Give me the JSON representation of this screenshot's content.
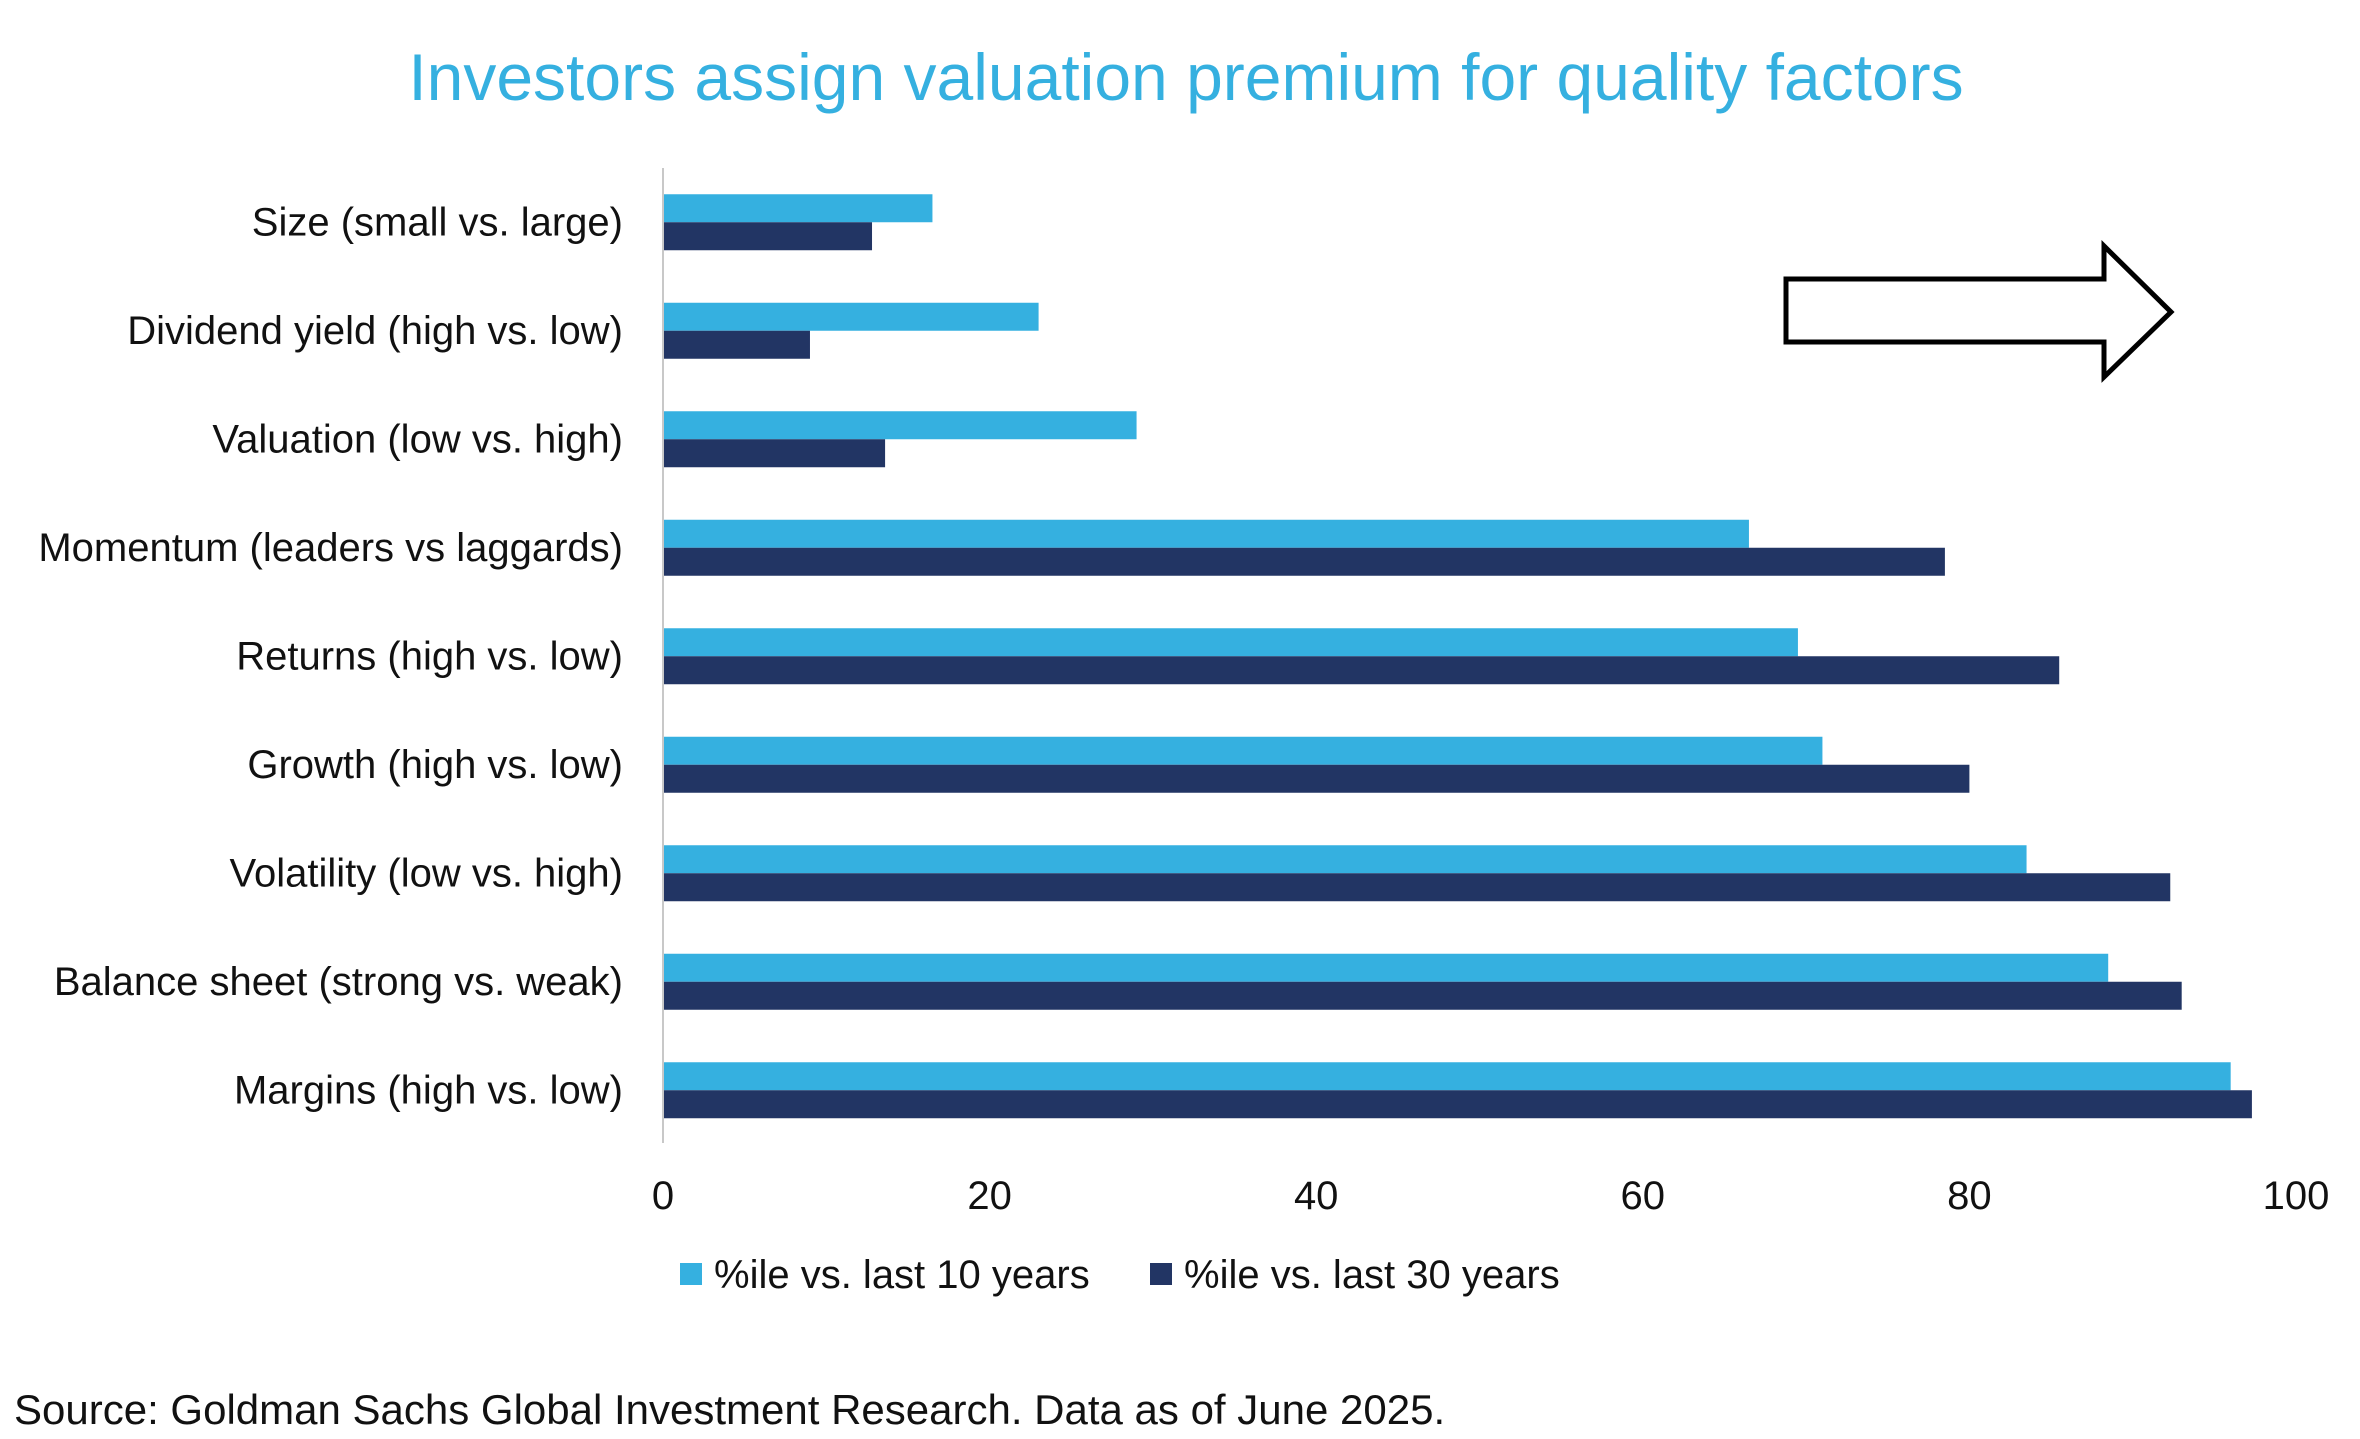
{
  "chart_data": {
    "type": "bar",
    "orientation": "horizontal",
    "title": "Investors assign valuation premium for quality factors",
    "categories": [
      "Size (small vs. large)",
      "Dividend yield (high vs. low)",
      "Valuation (low vs. high)",
      "Momentum (leaders vs laggards)",
      "Returns (high vs. low)",
      "Growth (high vs. low)",
      "Volatility (low vs. high)",
      "Balance sheet (strong vs. weak)",
      "Margins (high vs. low)"
    ],
    "series": [
      {
        "name": "%ile vs. last 10 years",
        "color": "#35b0e0",
        "values": [
          16.5,
          23,
          29,
          66.5,
          69.5,
          71,
          83.5,
          88.5,
          96
        ]
      },
      {
        "name": "%ile vs. last 30 years",
        "color": "#223564",
        "values": [
          12.8,
          9,
          13.6,
          78.5,
          85.5,
          80,
          92.3,
          93,
          97.3
        ]
      }
    ],
    "xlim": [
      0,
      100
    ],
    "xticks": [
      "0",
      "20",
      "40",
      "60",
      "80",
      "100"
    ],
    "xlabel": "",
    "ylabel": "",
    "grid": false,
    "legend_position": "bottom",
    "annotation": "arrow-right",
    "source": "Source: Goldman Sachs Global Investment Research. Data as of June 2025.",
    "title_color": "#35b0e0"
  }
}
